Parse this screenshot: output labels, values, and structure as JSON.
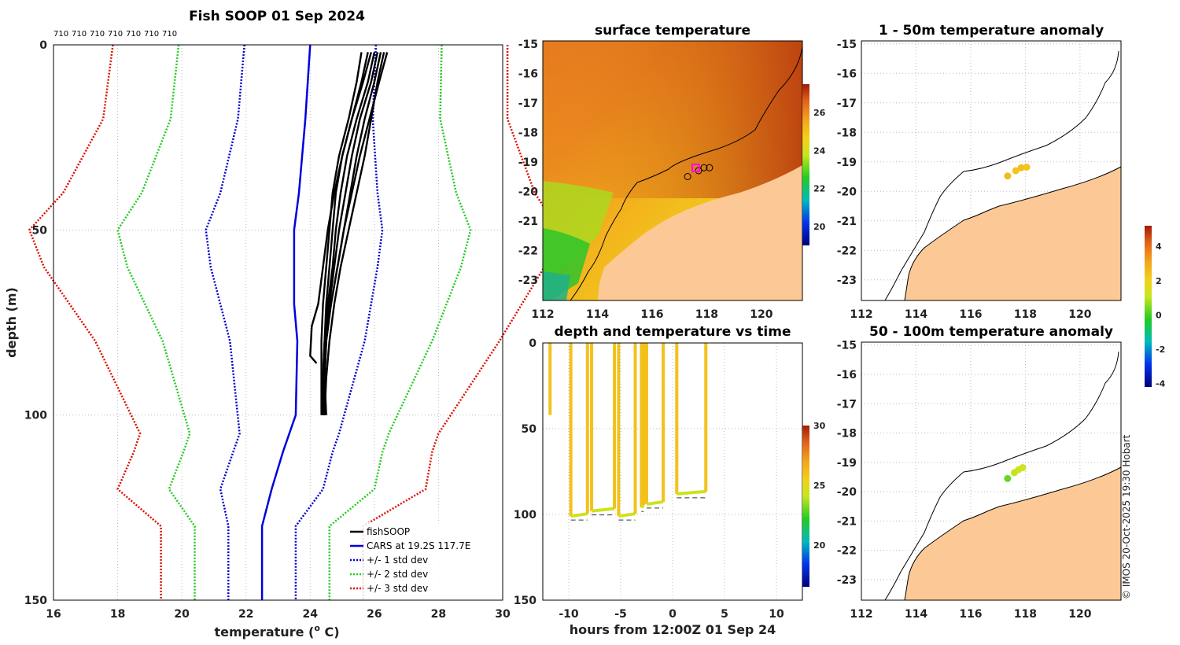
{
  "colors": {
    "fishsoop": "#000000",
    "cars": "#0000dd",
    "std1": "#0000cc",
    "std2": "#22cc22",
    "std3": "#dd1100",
    "land": "#fcc996",
    "grid": "#bbbbbb"
  },
  "credit": "© IMOS 20-Oct-2025 19:30 Hobart",
  "chart_data": [
    {
      "id": "profile",
      "type": "line",
      "title": "Fish SOOP 01 Sep 2024",
      "top_labels": [
        "710",
        "710",
        "710",
        "710",
        "710",
        "710",
        "710"
      ],
      "xlabel": "temperature (° C)",
      "xlabel_parts": {
        "main": "temperature (",
        "sup": "o",
        "end": " C)"
      },
      "ylabel": "depth (m)",
      "xlim": [
        16,
        30
      ],
      "ylim": [
        0,
        150
      ],
      "xticks": [
        16,
        18,
        20,
        22,
        24,
        26,
        28,
        30
      ],
      "yticks": [
        0,
        50,
        100,
        150
      ],
      "grid": true,
      "legend_position": "bottom-right",
      "legend": [
        "fishSOOP",
        "CARS at 19.2S 117.7E",
        "+/- 1 std dev",
        "+/- 2 std dev",
        "+/- 3 std dev"
      ],
      "cars_mean": {
        "depth": [
          0,
          20,
          40,
          50,
          70,
          80,
          100,
          105,
          110,
          120,
          130,
          150
        ],
        "temp": [
          24.0,
          23.85,
          23.65,
          23.5,
          23.5,
          23.6,
          23.55,
          23.35,
          23.15,
          22.8,
          22.5,
          22.5
        ]
      },
      "std_offsets": {
        "depth": [
          0,
          20,
          40,
          50,
          60,
          80,
          105,
          110,
          120,
          130,
          150
        ],
        "sd": [
          2.05,
          2.1,
          2.45,
          2.75,
          2.6,
          2.1,
          1.55,
          1.55,
          1.6,
          1.05,
          1.05
        ]
      },
      "fishsoop_profiles": [
        {
          "depth": [
            2,
            10,
            20,
            30,
            40,
            50,
            60,
            70,
            80,
            90,
            100
          ],
          "temp": [
            26.1,
            25.9,
            25.55,
            25.3,
            25.1,
            24.9,
            24.75,
            24.6,
            24.5,
            24.45,
            24.45
          ]
        },
        {
          "depth": [
            2,
            10,
            20,
            30,
            40,
            50,
            60,
            70,
            80,
            90,
            100
          ],
          "temp": [
            26.3,
            26.1,
            25.9,
            25.7,
            25.45,
            25.2,
            24.95,
            24.75,
            24.6,
            24.5,
            24.45
          ]
        },
        {
          "depth": [
            2,
            10,
            20,
            30,
            40,
            50,
            60,
            70,
            80,
            90,
            100
          ],
          "temp": [
            25.8,
            25.6,
            25.3,
            25.0,
            24.8,
            24.7,
            24.6,
            24.5,
            24.45,
            24.4,
            24.4
          ]
        },
        {
          "depth": [
            2,
            10,
            20,
            30,
            40,
            50,
            60,
            70,
            80,
            90,
            100
          ],
          "temp": [
            26.2,
            26.0,
            25.7,
            25.45,
            25.25,
            25.05,
            24.85,
            24.65,
            24.5,
            24.45,
            24.45
          ]
        },
        {
          "depth": [
            2,
            10,
            20,
            30,
            40,
            50,
            60,
            70,
            80,
            90,
            100
          ],
          "temp": [
            25.6,
            25.45,
            25.2,
            24.9,
            24.7,
            24.6,
            24.5,
            24.4,
            24.35,
            24.35,
            24.35
          ]
        },
        {
          "depth": [
            2,
            10,
            20,
            30,
            40,
            50,
            60,
            70,
            80,
            90,
            100
          ],
          "temp": [
            26.0,
            25.8,
            25.45,
            25.15,
            24.95,
            24.8,
            24.7,
            24.55,
            24.45,
            24.4,
            24.4
          ]
        },
        {
          "depth": [
            2,
            10,
            20,
            30,
            40,
            50,
            60,
            70,
            76,
            84,
            86
          ],
          "temp": [
            25.9,
            25.65,
            25.3,
            25.0,
            24.75,
            24.55,
            24.4,
            24.25,
            24.05,
            24.0,
            24.2
          ]
        },
        {
          "depth": [
            2,
            10,
            20,
            30,
            40,
            50,
            60,
            70,
            80,
            90,
            100
          ],
          "temp": [
            26.4,
            26.15,
            25.85,
            25.55,
            25.3,
            25.05,
            24.85,
            24.65,
            24.5,
            24.45,
            24.5
          ]
        }
      ]
    },
    {
      "id": "sst",
      "type": "heatmap",
      "title": "surface temperature",
      "xticks": [
        112,
        114,
        116,
        118,
        120
      ],
      "yticks": [
        -15,
        -16,
        -17,
        -18,
        -19,
        -20,
        -21,
        -22,
        -23
      ],
      "xlim": [
        112,
        121.5
      ],
      "ylim": [
        -23.7,
        -14.9
      ],
      "colorbar": {
        "range": [
          19,
          27.5
        ],
        "ticks": [
          20,
          22,
          24,
          26
        ]
      },
      "drop_markers": [
        [
          117.3,
          -19.5
        ],
        [
          117.7,
          -19.3
        ],
        [
          117.9,
          -19.2
        ],
        [
          118.1,
          -19.2
        ]
      ]
    },
    {
      "id": "anom1",
      "type": "scatter",
      "title": "1 - 50m temperature anomaly",
      "xticks": [
        112,
        114,
        116,
        118,
        120
      ],
      "yticks": [
        -15,
        -16,
        -17,
        -18,
        -19,
        -20,
        -21,
        -22,
        -23
      ],
      "xlim": [
        112,
        121.5
      ],
      "ylim": [
        -23.7,
        -14.9
      ],
      "points": [
        {
          "lon": 117.35,
          "lat": -19.48,
          "v": 2.6
        },
        {
          "lon": 117.65,
          "lat": -19.3,
          "v": 2.4
        },
        {
          "lon": 117.85,
          "lat": -19.2,
          "v": 2.5
        },
        {
          "lon": 118.05,
          "lat": -19.18,
          "v": 2.3
        }
      ]
    },
    {
      "id": "anom2",
      "type": "scatter",
      "title": "50 - 100m temperature anomaly",
      "xticks": [
        112,
        114,
        116,
        118,
        120
      ],
      "yticks": [
        -15,
        -16,
        -17,
        -18,
        -19,
        -20,
        -21,
        -22,
        -23
      ],
      "xlim": [
        112,
        121.5
      ],
      "ylim": [
        -23.7,
        -14.9
      ],
      "points": [
        {
          "lon": 117.35,
          "lat": -19.55,
          "v": 0.3
        },
        {
          "lon": 117.6,
          "lat": -19.35,
          "v": 1.0
        },
        {
          "lon": 117.75,
          "lat": -19.25,
          "v": 1.2
        },
        {
          "lon": 117.9,
          "lat": -19.18,
          "v": 1.3
        }
      ],
      "colorbar": {
        "range": [
          -4.2,
          5.2
        ],
        "ticks": [
          4,
          2,
          0,
          -2,
          -4
        ]
      }
    },
    {
      "id": "depthtime",
      "type": "scatter",
      "title": "depth and temperature vs time",
      "xlabel": "hours from 12:00Z 01 Sep 24",
      "xlim": [
        -12.5,
        12.5
      ],
      "ylim": [
        0,
        150
      ],
      "xticks": [
        -10,
        -5,
        0,
        5,
        10
      ],
      "yticks": [
        0,
        50,
        100,
        150
      ],
      "colorbar": {
        "range": [
          16.5,
          30
        ],
        "ticks": [
          30,
          25,
          20
        ]
      },
      "casts": [
        {
          "t0": -11.8,
          "t1": -11.8,
          "maxd": 42
        },
        {
          "t0": -9.8,
          "t1": -8.2,
          "maxd": 101
        },
        {
          "t0": -7.8,
          "t1": -5.6,
          "maxd": 98
        },
        {
          "t0": -5.2,
          "t1": -3.6,
          "maxd": 101
        },
        {
          "t0": -3.0,
          "t1": -2.8,
          "maxd": 96
        },
        {
          "t0": -2.5,
          "t1": -0.9,
          "maxd": 94
        },
        {
          "t0": 0.4,
          "t1": 3.2,
          "maxd": 88
        }
      ]
    }
  ]
}
